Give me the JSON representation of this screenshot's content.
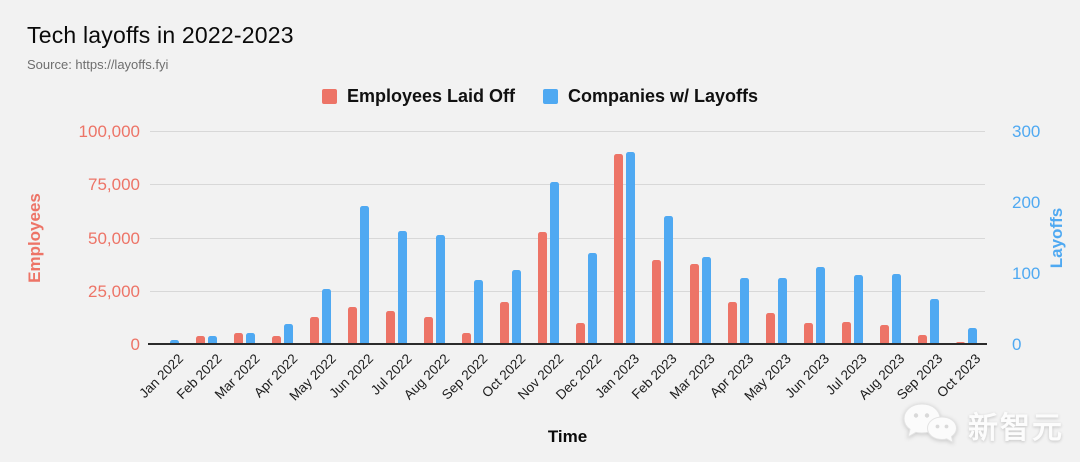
{
  "title": "Tech layoffs in 2022-2023",
  "source": "Source: https://layoffs.fyi",
  "legend": [
    {
      "label": "Employees Laid Off",
      "color": "#ED7467"
    },
    {
      "label": "Companies w/ Layoffs",
      "color": "#4FA9F2"
    }
  ],
  "watermark": {
    "text": "新智元",
    "icon": "wechat-logo-icon"
  },
  "colors": {
    "background": "#F2F2F2",
    "gridline": "#D8D8D8",
    "axis_line": "#2B2B2B",
    "employees": "#ED7467",
    "companies": "#4FA9F2"
  },
  "chart_data": {
    "type": "bar",
    "title": "Tech layoffs in 2022-2023",
    "xlabel": "Time",
    "grid": true,
    "legend_position": "top-center",
    "categories": [
      "Jan 2022",
      "Feb 2022",
      "Mar 2022",
      "Apr 2022",
      "May 2022",
      "Jun 2022",
      "Jul 2022",
      "Aug 2022",
      "Sep 2022",
      "Oct 2022",
      "Nov 2022",
      "Dec 2022",
      "Jan 2023",
      "Feb 2023",
      "Mar 2023",
      "Apr 2023",
      "May 2023",
      "Jun 2023",
      "Jul 2023",
      "Aug 2023",
      "Sep 2023",
      "Oct 2023"
    ],
    "series": [
      {
        "name": "Employees Laid Off",
        "axis": "left",
        "color": "#ED7467",
        "values": [
          500,
          3600,
          5000,
          3800,
          12500,
          17300,
          15500,
          12800,
          5000,
          19500,
          52500,
          9800,
          89000,
          39500,
          37500,
          19800,
          14500,
          10000,
          10300,
          8700,
          4000,
          900
        ]
      },
      {
        "name": "Companies w/ Layoffs",
        "axis": "right",
        "color": "#4FA9F2",
        "values": [
          5,
          11,
          16,
          28,
          77,
          194,
          159,
          154,
          90,
          104,
          228,
          128,
          271,
          180,
          122,
          93,
          93,
          109,
          97,
          98,
          64,
          23
        ]
      }
    ],
    "left_axis": {
      "label": "Employees",
      "color": "#ED7467",
      "min": 0,
      "max": 100000,
      "ticks": [
        "100,000",
        "75,000",
        "50,000",
        "25,000",
        "0"
      ]
    },
    "right_axis": {
      "label": "Layoffs",
      "color": "#4FA9F2",
      "min": 0,
      "max": 300,
      "ticks": [
        "300",
        "200",
        "100",
        "0"
      ]
    }
  }
}
